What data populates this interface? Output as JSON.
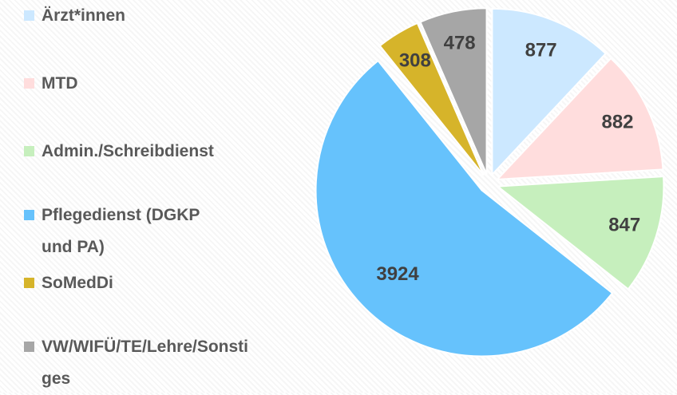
{
  "chart_data": {
    "type": "pie",
    "categories": [
      "Ärzt*innen",
      "MTD",
      "Admin./Schreibdienst",
      "Pflegedienst (DGKP und PA)",
      "SoMedDi",
      "VW/WIFÜ/TE/Lehre/Sonstiges"
    ],
    "values": [
      877,
      882,
      847,
      3924,
      308,
      478
    ],
    "colors": [
      "#cce8ff",
      "#ffdddd",
      "#c6efbd",
      "#66c2fc",
      "#d6b42a",
      "#a6a6a6"
    ],
    "legend": "left"
  }
}
